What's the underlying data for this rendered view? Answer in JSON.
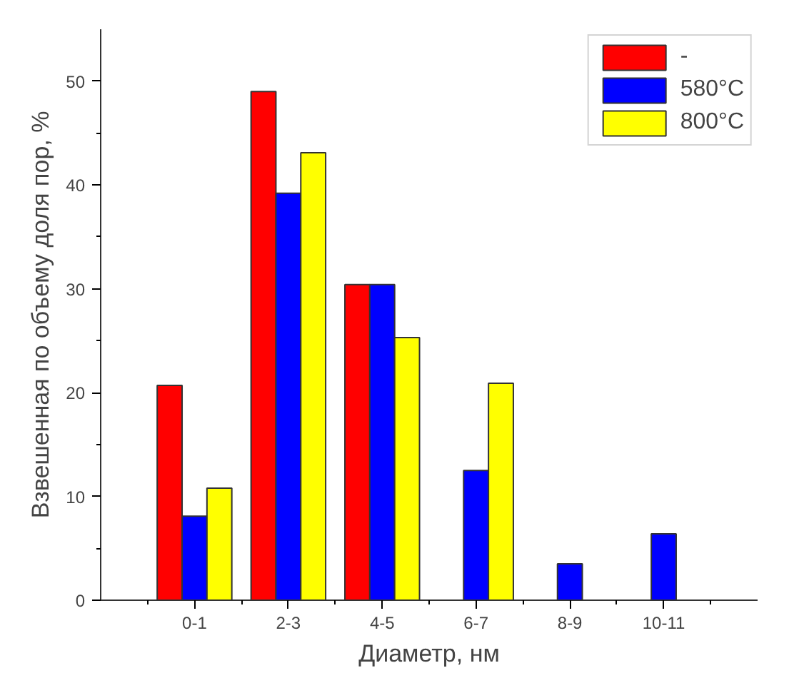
{
  "chart_data": {
    "type": "bar",
    "xlabel": "Диаметр, нм",
    "ylabel": "Взвешенная по объему доля пор, %",
    "categories": [
      "0-1",
      "2-3",
      "4-5",
      "6-7",
      "8-9",
      "10-11"
    ],
    "series": [
      {
        "name": "-",
        "color": "#ff0000",
        "values": [
          20.7,
          49.0,
          30.4,
          null,
          null,
          null
        ]
      },
      {
        "name": "580°C",
        "color": "#0000ff",
        "values": [
          8.1,
          39.2,
          30.4,
          12.5,
          3.5,
          6.4
        ]
      },
      {
        "name": "800°C",
        "color": "#ffff00",
        "values": [
          10.8,
          43.1,
          25.3,
          20.9,
          null,
          null
        ]
      }
    ],
    "ylim": [
      0,
      55
    ],
    "yticks": [
      0,
      10,
      20,
      30,
      40,
      50
    ],
    "grid": false,
    "legend": "top right"
  }
}
